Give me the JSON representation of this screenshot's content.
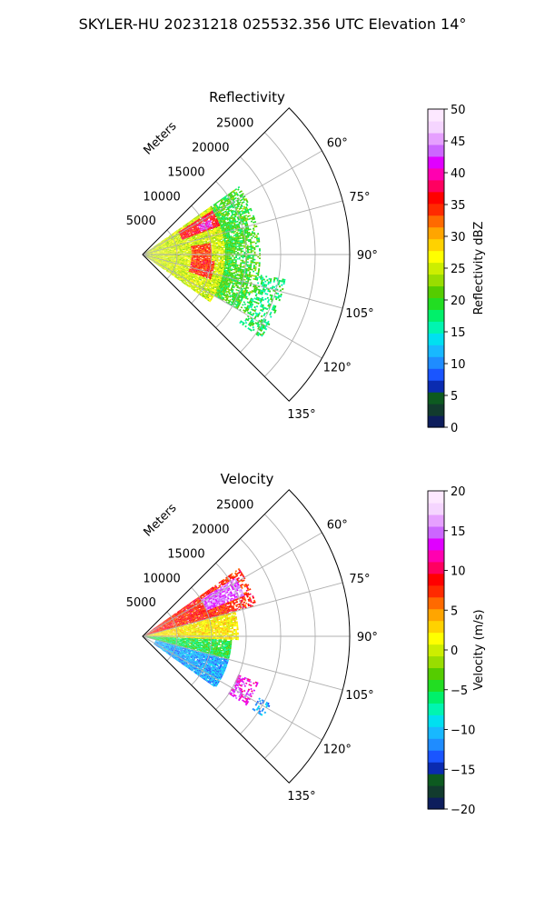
{
  "figure": {
    "suptitle": "SKYLER-HU  20231218  025532.356 UTC Elevation 14°"
  },
  "chart_data": [
    {
      "type": "heatmap",
      "subtype": "polar sector (PPI)",
      "title": "Reflectivity",
      "radial_label": "Meters",
      "r_ticks": [
        "5000",
        "10000",
        "15000",
        "20000",
        "25000"
      ],
      "theta_ticks": [
        "60°",
        "75°",
        "90°",
        "105°",
        "120°",
        "135°"
      ],
      "theta_range_deg": [
        45,
        135
      ],
      "r_range_m": [
        0,
        30000
      ],
      "grid": true,
      "colorbar": {
        "label": "Reflectivity dBZ",
        "range": [
          0,
          50
        ],
        "ticks": [
          "0",
          "5",
          "10",
          "15",
          "20",
          "25",
          "30",
          "35",
          "40",
          "45",
          "50"
        ],
        "colors": [
          "#0d1d5c",
          "#123b2e",
          "#0d5a20",
          "#0a2bb0",
          "#1a55ff",
          "#1f8cff",
          "#18b8ff",
          "#00e0f0",
          "#00f5b0",
          "#00f06a",
          "#22dd22",
          "#55cc00",
          "#99dd00",
          "#ccee00",
          "#ffff00",
          "#ffd200",
          "#ffa500",
          "#ff6a00",
          "#ff2a00",
          "#ff0000",
          "#ff0060",
          "#ff00b0",
          "#e000ff",
          "#cc66ff",
          "#e6a0ff",
          "#f5d5ff",
          "#fde8ff"
        ]
      },
      "echo_summary": [
        {
          "theta": [
            55,
            125
          ],
          "r": [
            0,
            12000
          ],
          "value": 25
        },
        {
          "theta": [
            58,
            70
          ],
          "r": [
            6000,
            12000
          ],
          "value": 36
        },
        {
          "theta": [
            62,
            68
          ],
          "r": [
            9000,
            11000
          ],
          "value": 42
        },
        {
          "theta": [
            80,
            95
          ],
          "r": [
            7000,
            10000
          ],
          "value": 34
        },
        {
          "theta": [
            95,
            110
          ],
          "r": [
            7000,
            10500
          ],
          "value": 35
        },
        {
          "theta": [
            55,
            120
          ],
          "r": [
            12000,
            17000
          ],
          "value": 20
        },
        {
          "theta": [
            100,
            125
          ],
          "r": [
            17000,
            21000
          ],
          "value": 18
        }
      ]
    },
    {
      "type": "heatmap",
      "subtype": "polar sector (PPI)",
      "title": "Velocity",
      "radial_label": "Meters",
      "r_ticks": [
        "5000",
        "10000",
        "15000",
        "20000",
        "25000"
      ],
      "theta_ticks": [
        "60°",
        "75°",
        "90°",
        "105°",
        "120°",
        "135°"
      ],
      "theta_range_deg": [
        45,
        135
      ],
      "r_range_m": [
        0,
        30000
      ],
      "grid": true,
      "colorbar": {
        "label": "Velocity (m/s)",
        "range": [
          -20,
          20
        ],
        "ticks": [
          "−20",
          "−15",
          "−10",
          "−5",
          "0",
          "5",
          "10",
          "15",
          "20"
        ],
        "colors": [
          "#0d1d5c",
          "#123b2e",
          "#0d5a20",
          "#0a2bb0",
          "#1a55ff",
          "#1f8cff",
          "#18b8ff",
          "#00e0f0",
          "#00f5b0",
          "#00f06a",
          "#22dd22",
          "#55cc00",
          "#99dd00",
          "#ccee00",
          "#ffff00",
          "#ffd200",
          "#ffa500",
          "#ff6a00",
          "#ff2a00",
          "#ff0000",
          "#ff0060",
          "#ff00b0",
          "#e000ff",
          "#cc66ff",
          "#e6a0ff",
          "#f5d5ff",
          "#fde8ff"
        ]
      },
      "echo_summary": [
        {
          "theta": [
            55,
            75
          ],
          "r": [
            0,
            17000
          ],
          "value": 8
        },
        {
          "theta": [
            58,
            68
          ],
          "r": [
            10000,
            16000
          ],
          "value": 15
        },
        {
          "theta": [
            75,
            92
          ],
          "r": [
            0,
            14000
          ],
          "value": 2
        },
        {
          "theta": [
            92,
            105
          ],
          "r": [
            0,
            13000
          ],
          "value": -5
        },
        {
          "theta": [
            105,
            125
          ],
          "r": [
            2000,
            13000
          ],
          "value": -11
        },
        {
          "theta": [
            112,
            124
          ],
          "r": [
            15000,
            18000
          ],
          "value": 13
        },
        {
          "theta": [
            118,
            124
          ],
          "r": [
            19000,
            21000
          ],
          "value": -11
        }
      ]
    }
  ]
}
